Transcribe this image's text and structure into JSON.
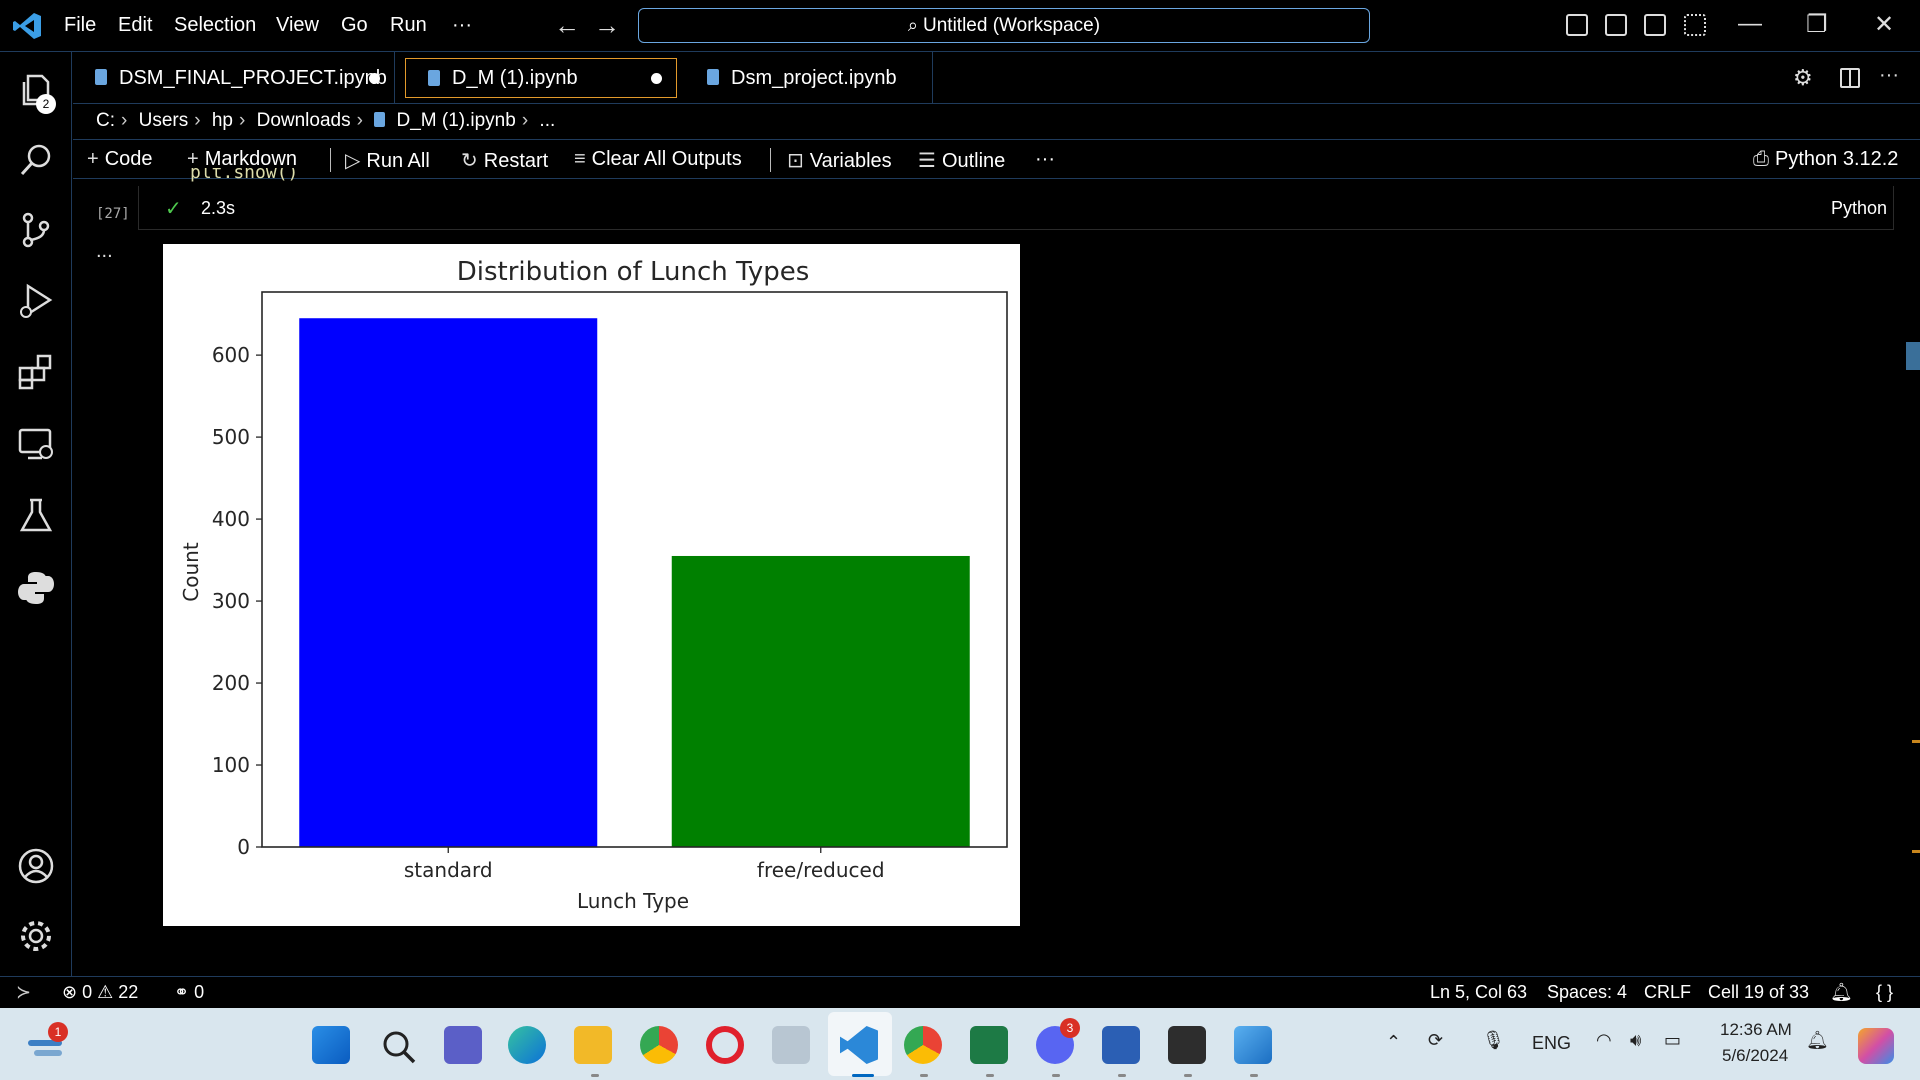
{
  "titlebar": {
    "menus": [
      "File",
      "Edit",
      "Selection",
      "View",
      "Go",
      "Run",
      "···"
    ],
    "search_text": "Untitled (Workspace)"
  },
  "activity": {
    "explorer_badge": "2"
  },
  "tabs": [
    {
      "label": "DSM_FINAL_PROJECT.ipynb",
      "dirty": true
    },
    {
      "label": "D_M (1).ipynb",
      "dirty": true,
      "active": true
    },
    {
      "label": "Dsm_project.ipynb",
      "dirty": false
    }
  ],
  "breadcrumb": [
    "C:",
    "Users",
    "hp",
    "Downloads",
    "D_M (1).ipynb",
    "..."
  ],
  "toolbar": {
    "code": "Code",
    "markdown": "Markdown",
    "run_all": "Run All",
    "restart": "Restart",
    "clear_all_outputs": "Clear All Outputs",
    "variables": "Variables",
    "outline": "Outline",
    "more": "···",
    "kernel": "Python 3.12.2"
  },
  "cell": {
    "code_peek": "plt.show()",
    "execution_count": "[27]",
    "duration": "2.3s",
    "language": "Python",
    "output_more": "..."
  },
  "chart_data": {
    "type": "bar",
    "title": "Distribution of Lunch Types",
    "xlabel": "Lunch Type",
    "ylabel": "Count",
    "categories": [
      "standard",
      "free/reduced"
    ],
    "values": [
      645,
      355
    ],
    "colors": [
      "#0000ff",
      "#008000"
    ],
    "ylim": [
      0,
      677
    ],
    "yticks": [
      0,
      100,
      200,
      300,
      400,
      500,
      600
    ],
    "grid": false
  },
  "statusbar": {
    "errors": "0",
    "warnings": "22",
    "ports": "0",
    "position": "Ln 5, Col 63",
    "spaces": "Spaces: 4",
    "eol": "CRLF",
    "cell": "Cell 19 of 33"
  },
  "taskbar": {
    "notification_badge": "1",
    "discord_badge": "3",
    "lang": "ENG",
    "time": "12:36 AM",
    "date": "5/6/2024"
  }
}
